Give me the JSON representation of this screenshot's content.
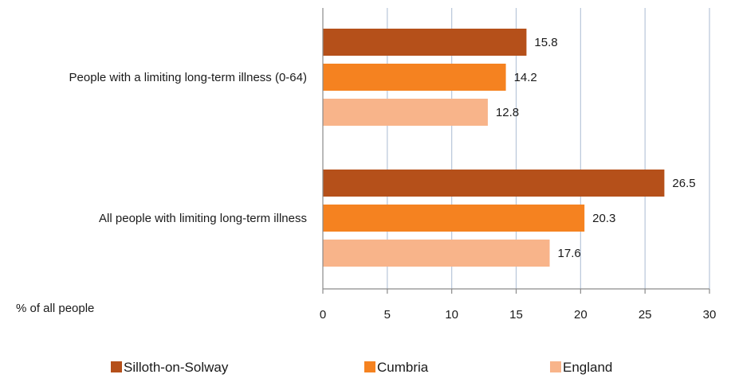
{
  "chart_data": {
    "type": "bar",
    "orientation": "horizontal",
    "categories": [
      "People with a limiting long-term illness (0-64)",
      "All people with limiting long-term illness"
    ],
    "series": [
      {
        "name": "Silloth-on-Solway",
        "color": "#B5501A",
        "values": [
          15.8,
          26.5
        ]
      },
      {
        "name": "Cumbria",
        "color": "#F58220",
        "values": [
          14.2,
          20.3
        ]
      },
      {
        "name": "England",
        "color": "#F8B48A",
        "values": [
          12.8,
          17.6
        ]
      }
    ],
    "data_labels": [
      [
        "15.8",
        "14.2",
        "12.8"
      ],
      [
        "26.5",
        "20.3",
        "17.6"
      ]
    ],
    "xlabel": "% of all people",
    "xlim": [
      0,
      30
    ],
    "xticks": [
      0,
      5,
      10,
      15,
      20,
      25,
      30
    ],
    "grid": true,
    "legend_position": "bottom"
  }
}
